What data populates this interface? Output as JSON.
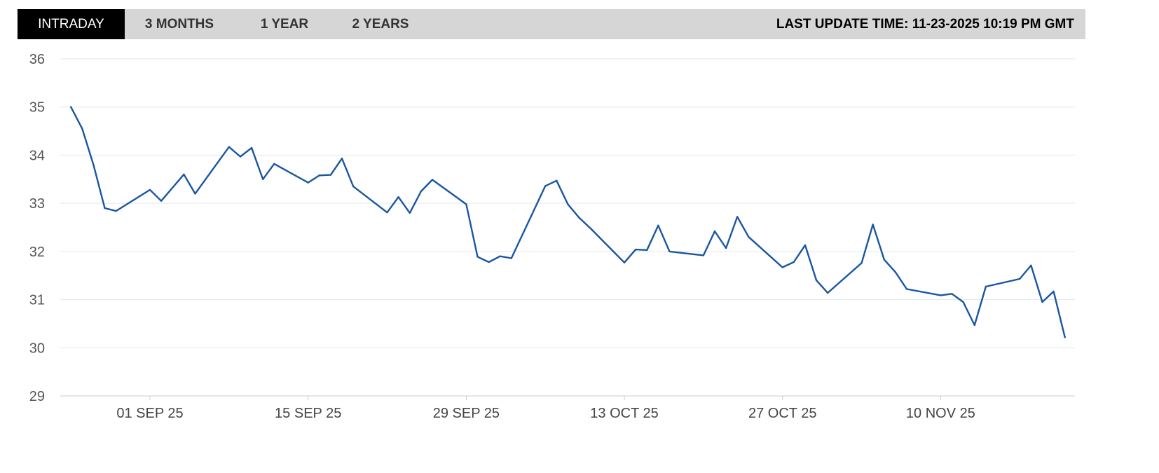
{
  "tabs": [
    {
      "label": "INTRADAY",
      "active": true
    },
    {
      "label": "3 MONTHS",
      "active": false
    },
    {
      "label": "1 YEAR",
      "active": false
    },
    {
      "label": "2 YEARS",
      "active": false
    }
  ],
  "last_update": "LAST UPDATE TIME: 11-23-2025 10:19 PM GMT",
  "colors": {
    "line": "#1a56a0",
    "grid": "#e3e6ea",
    "toolbar": "#d6d6d6",
    "active_tab": "#000000"
  },
  "chart_data": {
    "type": "line",
    "title": "",
    "xlabel": "",
    "ylabel": "",
    "ylim": [
      29,
      36
    ],
    "yticks": [
      29,
      30,
      31,
      32,
      33,
      34,
      35,
      36
    ],
    "xticks": [
      {
        "date": "2025-09-01",
        "label": "01 SEP 25"
      },
      {
        "date": "2025-09-15",
        "label": "15 SEP 25"
      },
      {
        "date": "2025-09-29",
        "label": "29 SEP 25"
      },
      {
        "date": "2025-10-13",
        "label": "13 OCT 25"
      },
      {
        "date": "2025-10-27",
        "label": "27 OCT 25"
      },
      {
        "date": "2025-11-10",
        "label": "10 NOV 25"
      }
    ],
    "grid": true,
    "series": [
      {
        "points": [
          [
            "2025-08-25",
            35.0
          ],
          [
            "2025-08-26",
            34.55
          ],
          [
            "2025-08-27",
            33.8
          ],
          [
            "2025-08-28",
            32.9
          ],
          [
            "2025-08-29",
            32.84
          ],
          [
            "2025-09-01",
            33.28
          ],
          [
            "2025-09-02",
            33.05
          ],
          [
            "2025-09-04",
            33.6
          ],
          [
            "2025-09-05",
            33.2
          ],
          [
            "2025-09-08",
            34.17
          ],
          [
            "2025-09-09",
            33.97
          ],
          [
            "2025-09-10",
            34.15
          ],
          [
            "2025-09-11",
            33.5
          ],
          [
            "2025-09-12",
            33.82
          ],
          [
            "2025-09-15",
            33.43
          ],
          [
            "2025-09-16",
            33.58
          ],
          [
            "2025-09-17",
            33.59
          ],
          [
            "2025-09-18",
            33.93
          ],
          [
            "2025-09-19",
            33.35
          ],
          [
            "2025-09-22",
            32.81
          ],
          [
            "2025-09-23",
            33.13
          ],
          [
            "2025-09-24",
            32.8
          ],
          [
            "2025-09-25",
            33.25
          ],
          [
            "2025-09-26",
            33.49
          ],
          [
            "2025-09-29",
            32.98
          ],
          [
            "2025-09-30",
            31.89
          ],
          [
            "2025-10-01",
            31.78
          ],
          [
            "2025-10-02",
            31.9
          ],
          [
            "2025-10-03",
            31.86
          ],
          [
            "2025-10-06",
            33.36
          ],
          [
            "2025-10-07",
            33.47
          ],
          [
            "2025-10-08",
            32.98
          ],
          [
            "2025-10-09",
            32.7
          ],
          [
            "2025-10-10",
            32.48
          ],
          [
            "2025-10-13",
            31.77
          ],
          [
            "2025-10-14",
            32.04
          ],
          [
            "2025-10-15",
            32.03
          ],
          [
            "2025-10-16",
            32.54
          ],
          [
            "2025-10-17",
            32.0
          ],
          [
            "2025-10-20",
            31.92
          ],
          [
            "2025-10-21",
            32.42
          ],
          [
            "2025-10-22",
            32.07
          ],
          [
            "2025-10-23",
            32.72
          ],
          [
            "2025-10-24",
            32.3
          ],
          [
            "2025-10-27",
            31.67
          ],
          [
            "2025-10-28",
            31.78
          ],
          [
            "2025-10-29",
            32.13
          ],
          [
            "2025-10-30",
            31.4
          ],
          [
            "2025-10-31",
            31.14
          ],
          [
            "2025-11-03",
            31.76
          ],
          [
            "2025-11-04",
            32.56
          ],
          [
            "2025-11-05",
            31.83
          ],
          [
            "2025-11-06",
            31.57
          ],
          [
            "2025-11-07",
            31.22
          ],
          [
            "2025-11-10",
            31.09
          ],
          [
            "2025-11-11",
            31.12
          ],
          [
            "2025-11-12",
            30.95
          ],
          [
            "2025-11-13",
            30.47
          ],
          [
            "2025-11-14",
            31.27
          ],
          [
            "2025-11-17",
            31.43
          ],
          [
            "2025-11-18",
            31.71
          ],
          [
            "2025-11-19",
            30.95
          ],
          [
            "2025-11-20",
            31.17
          ],
          [
            "2025-11-21",
            30.22
          ]
        ]
      }
    ]
  }
}
